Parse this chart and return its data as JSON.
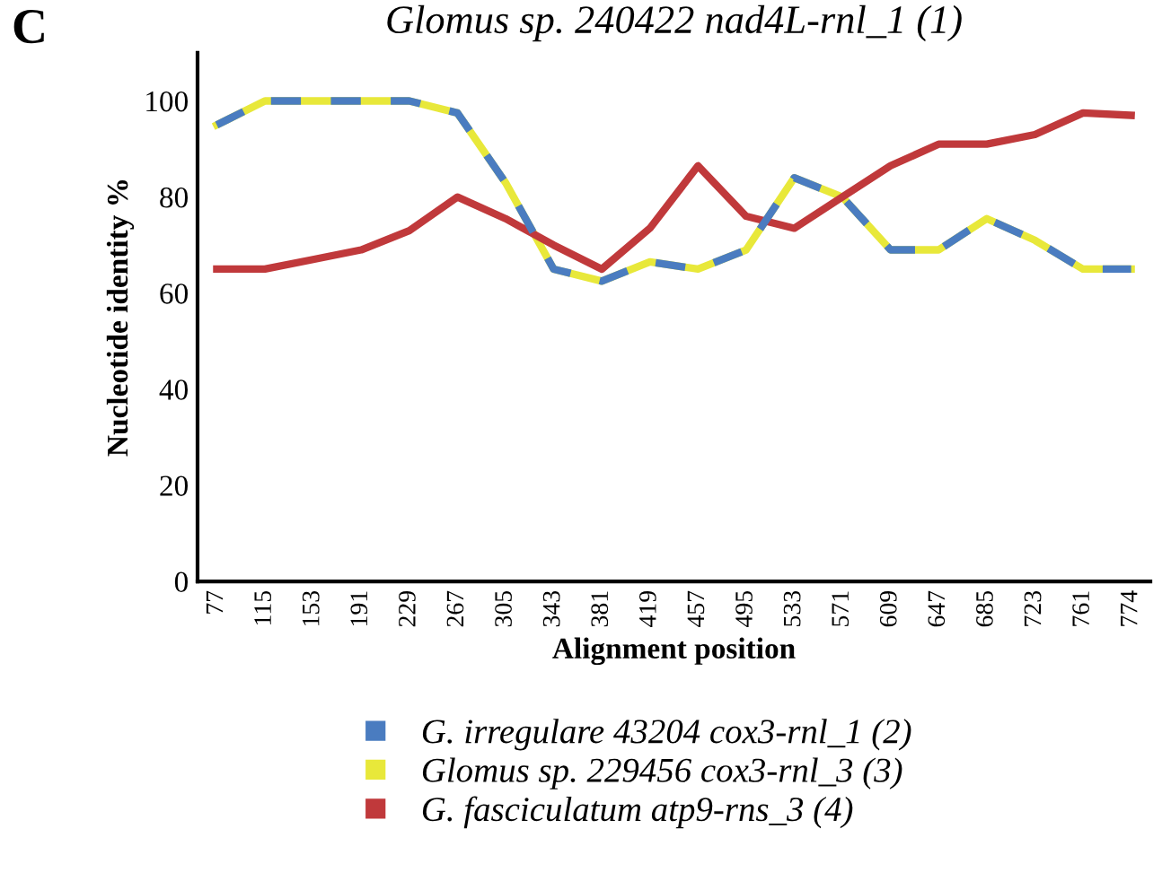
{
  "chart_data": {
    "type": "line",
    "title": "Glomus sp. 240422 nad4L-rnl_1 (1)",
    "xlabel": "Alignment position",
    "ylabel": "Nucleotide identity %",
    "annotations": [
      "C"
    ],
    "categories": [
      "77",
      "115",
      "153",
      "191",
      "229",
      "267",
      "305",
      "343",
      "381",
      "419",
      "457",
      "495",
      "533",
      "571",
      "609",
      "647",
      "685",
      "723",
      "761",
      "774"
    ],
    "series": [
      {
        "name": "G. irregulare 43204 cox3-rnl_1 (2)",
        "color": "#4a7cc0",
        "line_style": "dashed",
        "values": [
          95,
          100,
          100,
          100,
          100,
          97.5,
          83,
          65,
          62.5,
          66.5,
          65,
          69,
          84,
          80,
          69,
          69,
          75.5,
          71,
          65,
          65
        ]
      },
      {
        "name": "Glomus sp. 229456 cox3-rnl_3 (3)",
        "color": "#e8e83a",
        "line_style": "solid",
        "values": [
          95,
          100,
          100,
          100,
          100,
          97.5,
          83,
          65,
          62.5,
          66.5,
          65,
          69,
          84,
          80,
          69,
          69,
          75.5,
          71,
          65,
          65
        ]
      },
      {
        "name": "G. fasciculatum atp9-rns_3 (4)",
        "color": "#c0393b",
        "line_style": "solid",
        "values": [
          65,
          65,
          67,
          69,
          73,
          80,
          75.5,
          70,
          65,
          73.5,
          86.5,
          76,
          73.5,
          80,
          86.5,
          91,
          91,
          93,
          97.5,
          97
        ]
      }
    ],
    "ylim": [
      0,
      110
    ],
    "yticks": [
      0,
      20,
      40,
      60,
      80,
      100
    ],
    "grid": false,
    "legend": "bottom",
    "marker": "none"
  }
}
